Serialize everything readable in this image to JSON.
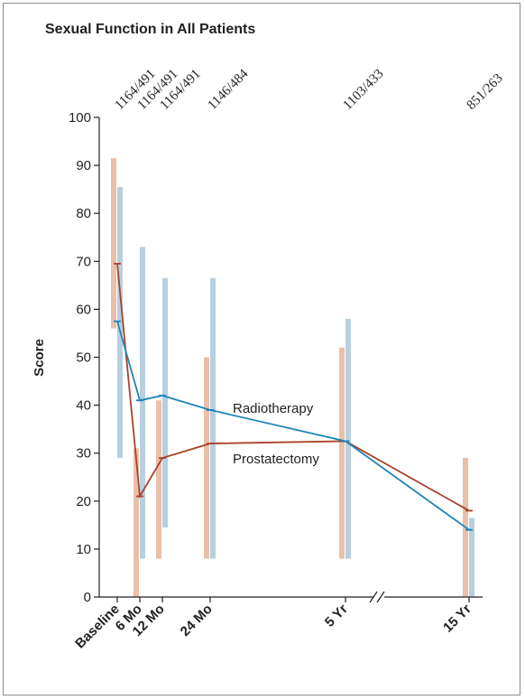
{
  "chart_data": {
    "type": "line",
    "title": "Sexual Function in All Patients",
    "ylabel": "Score",
    "ylim": [
      0,
      100
    ],
    "yticks": [
      0,
      10,
      20,
      30,
      40,
      50,
      60,
      70,
      80,
      90,
      100
    ],
    "categories": [
      "Baseline",
      "6 Mo",
      "12 Mo",
      "24 Mo",
      "5 Yr",
      "15 Yr"
    ],
    "n_labels": [
      "1164/491",
      "1164/491",
      "1164/491",
      "1146/484",
      "1103/433",
      "851/263"
    ],
    "series": [
      {
        "name": "Prostatectomy",
        "color": "#a8432c",
        "bar_color": "#ebc0a8",
        "values": [
          69.5,
          21,
          29,
          32,
          32.5,
          18
        ],
        "ranges": [
          [
            56,
            91.5
          ],
          [
            0,
            31
          ],
          [
            8,
            41
          ],
          [
            8,
            50
          ],
          [
            8,
            52
          ],
          [
            0,
            29
          ]
        ]
      },
      {
        "name": "Radiotherapy",
        "color": "#1f84b8",
        "bar_color": "#b8cfe0",
        "values": [
          57.5,
          41,
          42,
          39,
          32.5,
          14
        ],
        "ranges": [
          [
            29,
            85.5
          ],
          [
            8,
            73
          ],
          [
            14.5,
            66.5
          ],
          [
            8,
            66.5
          ],
          [
            8,
            58
          ],
          [
            0,
            16.5
          ]
        ]
      }
    ],
    "x_axis_break": "between 5 Yr and 15 Yr"
  }
}
